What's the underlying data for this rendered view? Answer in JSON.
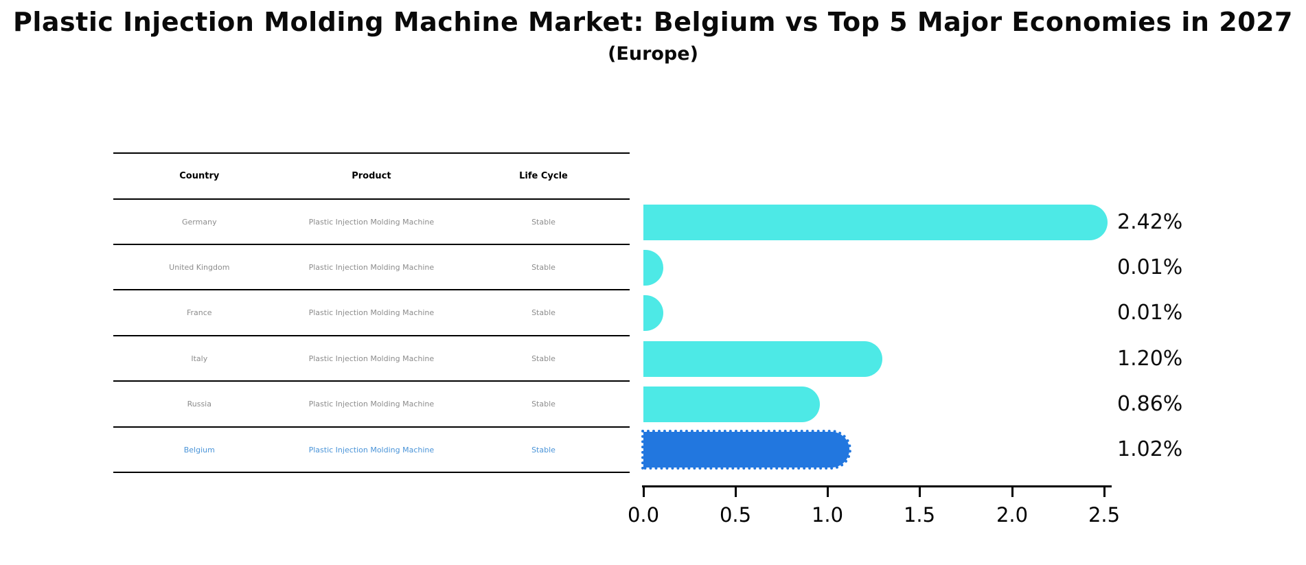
{
  "title": "Plastic Injection Molding Machine Market: Belgium vs Top 5 Major Economies in 2027",
  "subtitle": "(Europe)",
  "table": {
    "headers": [
      "Country",
      "Product",
      "Life Cycle"
    ],
    "rows": [
      {
        "country": "Germany",
        "product": "Plastic Injection Molding Machine",
        "life_cycle": "Stable",
        "highlighted": false
      },
      {
        "country": "United Kingdom",
        "product": "Plastic Injection Molding Machine",
        "life_cycle": "Stable",
        "highlighted": false
      },
      {
        "country": "France",
        "product": "Plastic Injection Molding Machine",
        "life_cycle": "Stable",
        "highlighted": false
      },
      {
        "country": "Italy",
        "product": "Plastic Injection Molding Machine",
        "life_cycle": "Stable",
        "highlighted": false
      },
      {
        "country": "Russia",
        "product": "Plastic Injection Molding Machine",
        "life_cycle": "Stable",
        "highlighted": false
      },
      {
        "country": "Belgium",
        "product": "Plastic Injection Molding Machine",
        "life_cycle": "Stable",
        "highlighted": true
      }
    ]
  },
  "chart_data": {
    "type": "bar",
    "orientation": "horizontal",
    "title": "Plastic Injection Molding Machine Market: Belgium vs Top 5 Major Economies in 2027",
    "subtitle": "(Europe)",
    "categories": [
      "Germany",
      "United Kingdom",
      "France",
      "Italy",
      "Russia",
      "Belgium"
    ],
    "values": [
      2.42,
      0.01,
      0.01,
      1.2,
      0.86,
      1.02
    ],
    "value_labels": [
      "2.42%",
      "0.01%",
      "0.01%",
      "1.20%",
      "0.86%",
      "1.02%"
    ],
    "xlabel": "",
    "ylabel": "",
    "xlim": [
      0.0,
      2.5
    ],
    "xticks": [
      "0.0",
      "0.5",
      "1.0",
      "1.5",
      "2.0",
      "2.5"
    ],
    "grid": false,
    "legend": false,
    "bar_color": "#4de9e6",
    "highlight_color": "#2277df",
    "highlight_index": 5,
    "highlight_style": "dotted-edge"
  },
  "colors": {
    "background": "#ffffff",
    "bar_turquoise": "#4de9e6",
    "bar_blue": "#2277df",
    "highlight_text_blue": "#4a94d8",
    "table_text_gray": "#8c8c8c",
    "text_black": "#0a0a0a"
  }
}
